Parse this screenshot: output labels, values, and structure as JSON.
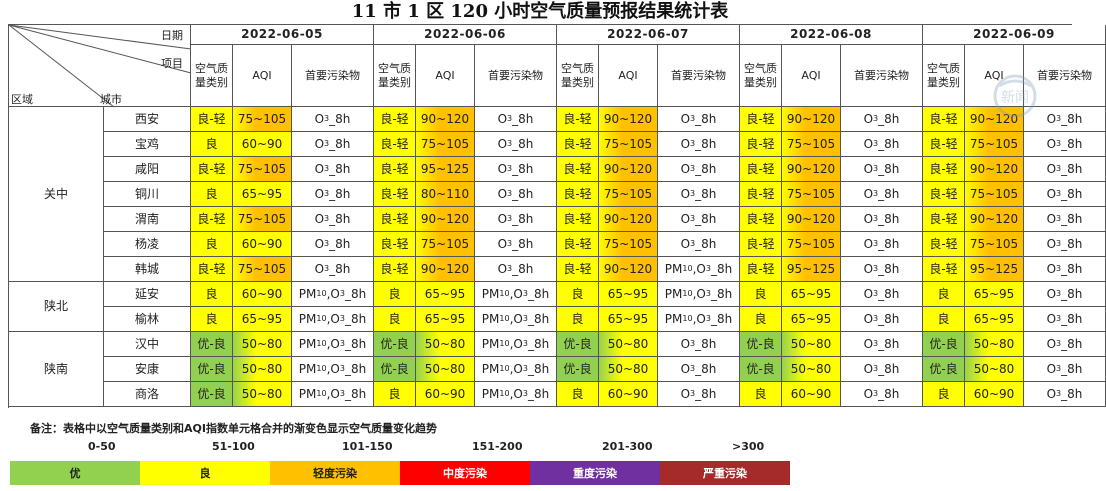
{
  "title": "11 市 1 区 120 小时空气质量预报结果统计表",
  "header": {
    "date_label": "日期",
    "item_label": "项目",
    "region_label": "区域",
    "city_label": "城市",
    "col_category": "空气质量类别",
    "col_aqi": "AQI",
    "col_pollutant": "首要污染物",
    "dates": [
      "2022-06-05",
      "2022-06-06",
      "2022-06-07",
      "2022-06-08",
      "2022-06-09"
    ]
  },
  "colors": {
    "优": "#92d050",
    "良": "#ffff00",
    "轻度污染": "#ffc000",
    "中度污染": "#ff0000",
    "重度污染": "#7030a0",
    "严重污染": "#a52a2a"
  },
  "regions": [
    {
      "name": "关中",
      "rows": 7
    },
    {
      "name": "陕北",
      "rows": 2
    },
    {
      "name": "陕南",
      "rows": 3
    }
  ],
  "cities": [
    {
      "name": "西安",
      "days": [
        {
          "cat": "良-轻",
          "aqi": "75~105",
          "pol": "O3_8h"
        },
        {
          "cat": "良-轻",
          "aqi": "90~120",
          "pol": "O3_8h"
        },
        {
          "cat": "良-轻",
          "aqi": "90~120",
          "pol": "O3_8h"
        },
        {
          "cat": "良-轻",
          "aqi": "90~120",
          "pol": "O3_8h"
        },
        {
          "cat": "良-轻",
          "aqi": "90~120",
          "pol": "O3_8h"
        }
      ]
    },
    {
      "name": "宝鸡",
      "days": [
        {
          "cat": "良",
          "aqi": "60~90",
          "pol": "O3_8h"
        },
        {
          "cat": "良-轻",
          "aqi": "75~105",
          "pol": "O3_8h"
        },
        {
          "cat": "良-轻",
          "aqi": "75~105",
          "pol": "O3_8h"
        },
        {
          "cat": "良-轻",
          "aqi": "75~105",
          "pol": "O3_8h"
        },
        {
          "cat": "良-轻",
          "aqi": "75~105",
          "pol": "O3_8h"
        }
      ]
    },
    {
      "name": "咸阳",
      "days": [
        {
          "cat": "良-轻",
          "aqi": "75~105",
          "pol": "O3_8h"
        },
        {
          "cat": "良-轻",
          "aqi": "95~125",
          "pol": "O3_8h"
        },
        {
          "cat": "良-轻",
          "aqi": "90~120",
          "pol": "O3_8h"
        },
        {
          "cat": "良-轻",
          "aqi": "90~120",
          "pol": "O3_8h"
        },
        {
          "cat": "良-轻",
          "aqi": "90~120",
          "pol": "O3_8h"
        }
      ]
    },
    {
      "name": "铜川",
      "days": [
        {
          "cat": "良",
          "aqi": "65~95",
          "pol": "O3_8h"
        },
        {
          "cat": "良-轻",
          "aqi": "80~110",
          "pol": "O3_8h"
        },
        {
          "cat": "良-轻",
          "aqi": "75~105",
          "pol": "O3_8h"
        },
        {
          "cat": "良-轻",
          "aqi": "75~105",
          "pol": "O3_8h"
        },
        {
          "cat": "良-轻",
          "aqi": "75~105",
          "pol": "O3_8h"
        }
      ]
    },
    {
      "name": "渭南",
      "days": [
        {
          "cat": "良-轻",
          "aqi": "75~105",
          "pol": "O3_8h"
        },
        {
          "cat": "良-轻",
          "aqi": "90~120",
          "pol": "O3_8h"
        },
        {
          "cat": "良-轻",
          "aqi": "90~120",
          "pol": "O3_8h"
        },
        {
          "cat": "良-轻",
          "aqi": "90~120",
          "pol": "O3_8h"
        },
        {
          "cat": "良-轻",
          "aqi": "90~120",
          "pol": "O3_8h"
        }
      ]
    },
    {
      "name": "杨凌",
      "days": [
        {
          "cat": "良",
          "aqi": "60~90",
          "pol": "O3_8h"
        },
        {
          "cat": "良-轻",
          "aqi": "75~105",
          "pol": "O3_8h"
        },
        {
          "cat": "良-轻",
          "aqi": "75~105",
          "pol": "O3_8h"
        },
        {
          "cat": "良-轻",
          "aqi": "75~105",
          "pol": "O3_8h"
        },
        {
          "cat": "良-轻",
          "aqi": "75~105",
          "pol": "O3_8h"
        }
      ]
    },
    {
      "name": "韩城",
      "days": [
        {
          "cat": "良-轻",
          "aqi": "75~105",
          "pol": "O3_8h"
        },
        {
          "cat": "良-轻",
          "aqi": "90~120",
          "pol": "O3_8h"
        },
        {
          "cat": "良-轻",
          "aqi": "90~120",
          "pol": "PM10,O3_8h"
        },
        {
          "cat": "良-轻",
          "aqi": "95~125",
          "pol": "O3_8h"
        },
        {
          "cat": "良-轻",
          "aqi": "95~125",
          "pol": "O3_8h"
        }
      ]
    },
    {
      "name": "延安",
      "days": [
        {
          "cat": "良",
          "aqi": "60~90",
          "pol": "PM10,O3_8h"
        },
        {
          "cat": "良",
          "aqi": "65~95",
          "pol": "PM10,O3_8h"
        },
        {
          "cat": "良",
          "aqi": "65~95",
          "pol": "PM10,O3_8h"
        },
        {
          "cat": "良",
          "aqi": "65~95",
          "pol": "O3_8h"
        },
        {
          "cat": "良",
          "aqi": "65~95",
          "pol": "O3_8h"
        }
      ]
    },
    {
      "name": "榆林",
      "days": [
        {
          "cat": "良",
          "aqi": "65~95",
          "pol": "PM10,O3_8h"
        },
        {
          "cat": "良",
          "aqi": "65~95",
          "pol": "PM10,O3_8h"
        },
        {
          "cat": "良",
          "aqi": "65~95",
          "pol": "PM10,O3_8h"
        },
        {
          "cat": "良",
          "aqi": "65~95",
          "pol": "O3_8h"
        },
        {
          "cat": "良",
          "aqi": "65~95",
          "pol": "O3_8h"
        }
      ]
    },
    {
      "name": "汉中",
      "days": [
        {
          "cat": "优-良",
          "aqi": "50~80",
          "pol": "PM10,O3_8h"
        },
        {
          "cat": "优-良",
          "aqi": "50~80",
          "pol": "PM10,O3_8h"
        },
        {
          "cat": "优-良",
          "aqi": "50~80",
          "pol": "O3_8h"
        },
        {
          "cat": "优-良",
          "aqi": "50~80",
          "pol": "O3_8h"
        },
        {
          "cat": "优-良",
          "aqi": "50~80",
          "pol": "O3_8h"
        }
      ]
    },
    {
      "name": "安康",
      "days": [
        {
          "cat": "优-良",
          "aqi": "50~80",
          "pol": "PM10,O3_8h"
        },
        {
          "cat": "优-良",
          "aqi": "50~80",
          "pol": "PM10,O3_8h"
        },
        {
          "cat": "优-良",
          "aqi": "50~80",
          "pol": "O3_8h"
        },
        {
          "cat": "优-良",
          "aqi": "50~80",
          "pol": "O3_8h"
        },
        {
          "cat": "优-良",
          "aqi": "50~80",
          "pol": "O3_8h"
        }
      ]
    },
    {
      "name": "商洛",
      "days": [
        {
          "cat": "优-良",
          "aqi": "50~80",
          "pol": "PM10,O3_8h"
        },
        {
          "cat": "良",
          "aqi": "60~90",
          "pol": "PM10,O3_8h"
        },
        {
          "cat": "良",
          "aqi": "60~90",
          "pol": "O3_8h"
        },
        {
          "cat": "良",
          "aqi": "60~90",
          "pol": "O3_8h"
        },
        {
          "cat": "良",
          "aqi": "60~90",
          "pol": "O3_8h"
        }
      ]
    }
  ],
  "note": "备注：表格中以空气质量类别和AQI指数单元格合并的渐变色显示空气质量变化趋势",
  "legend": [
    {
      "range": "0-50",
      "label": "优",
      "color": "#92d050",
      "text_color": "#222222"
    },
    {
      "range": "51-100",
      "label": "良",
      "color": "#ffff00",
      "text_color": "#222222"
    },
    {
      "range": "101-150",
      "label": "轻度污染",
      "color": "#ffc000",
      "text_color": "#222222"
    },
    {
      "range": "151-200",
      "label": "中度污染",
      "color": "#ff0000",
      "text_color": "#ffffff"
    },
    {
      "range": "201-300",
      "label": "重度污染",
      "color": "#7030a0",
      "text_color": "#ffffff"
    },
    {
      "range": ">300",
      "label": "严重污染",
      "color": "#a52a2a",
      "text_color": "#ffffff"
    }
  ],
  "watermark": {
    "icon": "news-logo-icon",
    "text": "新闻"
  }
}
